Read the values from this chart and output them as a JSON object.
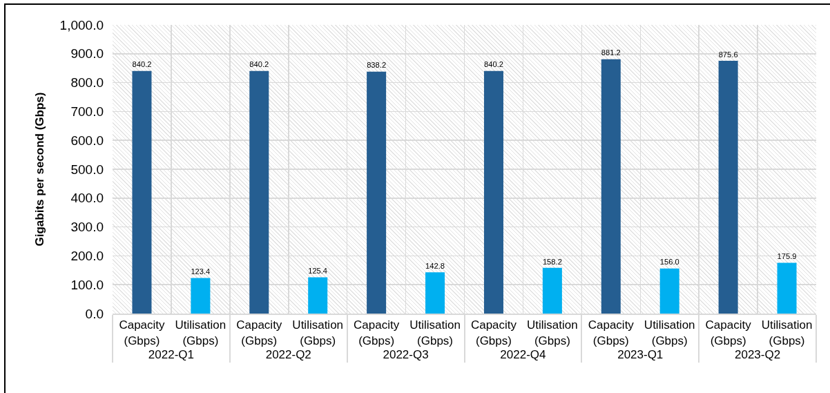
{
  "chart_data": {
    "type": "bar",
    "categories": [
      "2022-Q1",
      "2022-Q2",
      "2022-Q3",
      "2022-Q4",
      "2023-Q1",
      "2023-Q2"
    ],
    "series": [
      {
        "name": "Capacity (Gbps)",
        "color": "#255e91",
        "values": [
          840.2,
          840.2,
          838.2,
          840.2,
          881.2,
          875.6
        ],
        "value_labels": [
          "840.2",
          "840.2",
          "838.2",
          "840.2",
          "881.2",
          "875.6"
        ]
      },
      {
        "name": "Utilisation (Gbps)",
        "color": "#00b0f0",
        "values": [
          123.4,
          125.4,
          142.8,
          158.2,
          156.0,
          175.9
        ],
        "value_labels": [
          "123.4",
          "125.4",
          "142.8",
          "158.2",
          "156.0",
          "175.9"
        ]
      }
    ],
    "ylabel": "Gigabits per second (Gbps)",
    "ylim": [
      0,
      1000
    ],
    "yticks": [
      {
        "value": 0,
        "label": "0.0"
      },
      {
        "value": 100,
        "label": "100.0"
      },
      {
        "value": 200,
        "label": "200.0"
      },
      {
        "value": 300,
        "label": "300.0"
      },
      {
        "value": 400,
        "label": "400.0"
      },
      {
        "value": 500,
        "label": "500.0"
      },
      {
        "value": 600,
        "label": "600.0"
      },
      {
        "value": 700,
        "label": "700.0"
      },
      {
        "value": 800,
        "label": "800.0"
      },
      {
        "value": 900,
        "label": "900.0"
      },
      {
        "value": 1000,
        "label": "1,000.0"
      }
    ],
    "grid": true
  }
}
